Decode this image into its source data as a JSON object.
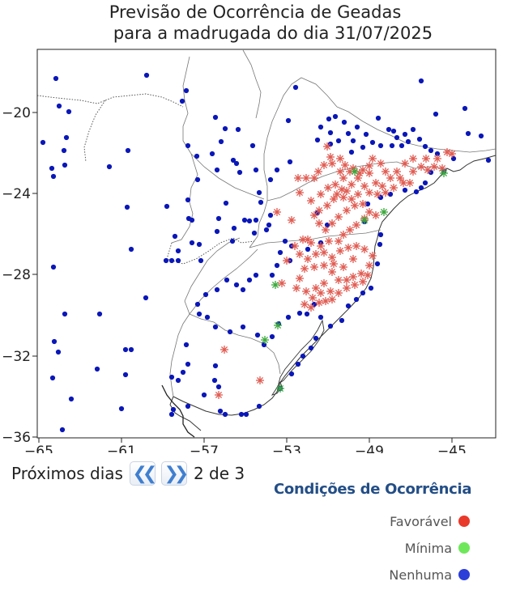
{
  "title": {
    "line1": "Previsão de Ocorrência de Geadas",
    "line2": "para a madrugada do dia 31/07/2025"
  },
  "axes": {
    "x_ticks": [
      "−65",
      "−61",
      "−57",
      "−53",
      "−49",
      "−45"
    ],
    "y_ticks": [
      "−20",
      "−24",
      "−28",
      "−32",
      "−36"
    ]
  },
  "navigation": {
    "label": "Próximos dias",
    "prev_icon": "double-chevron-left-icon",
    "next_icon": "double-chevron-right-icon",
    "page": "2 de 3"
  },
  "legend": {
    "title": "Condições de Ocorrência",
    "items": [
      {
        "label": "Favorável",
        "color": "#e8392a"
      },
      {
        "label": "Mínima",
        "color": "#6ee85a"
      },
      {
        "label": "Nenhuma",
        "color": "#2c3fd8"
      }
    ]
  },
  "colors": {
    "frost_favoravel": "#e05a50",
    "frost_minima": "#3aa83a",
    "station_nenhuma": "#0a17b8"
  }
}
